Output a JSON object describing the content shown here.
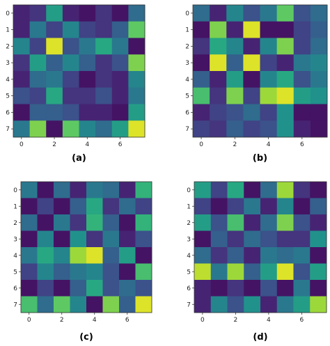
{
  "colormap": [
    "#440154",
    "#472d7b",
    "#3b528b",
    "#2c728e",
    "#21918c",
    "#28ae80",
    "#5ec962",
    "#addc30",
    "#fde725"
  ],
  "chart_data": [
    {
      "type": "heatmap",
      "caption": "(a)",
      "x_ticks": [
        "0",
        "2",
        "4",
        "6"
      ],
      "y_ticks": [
        "0",
        "1",
        "2",
        "3",
        "4",
        "5",
        "6",
        "7"
      ],
      "xlim": [
        -0.5,
        7.5
      ],
      "ylim": [
        7.5,
        -0.5
      ],
      "grid": false,
      "values": [
        [
          0.1,
          0.15,
          0.55,
          0.1,
          0.05,
          0.15,
          0.05,
          0.35
        ],
        [
          0.1,
          0.4,
          0.2,
          0.45,
          0.2,
          0.15,
          0.3,
          0.75
        ],
        [
          0.45,
          0.2,
          0.95,
          0.25,
          0.4,
          0.6,
          0.4,
          0.05
        ],
        [
          0.15,
          0.55,
          0.3,
          0.45,
          0.3,
          0.15,
          0.25,
          0.8
        ],
        [
          0.1,
          0.35,
          0.4,
          0.2,
          0.05,
          0.15,
          0.1,
          0.45
        ],
        [
          0.25,
          0.2,
          0.6,
          0.15,
          0.15,
          0.25,
          0.1,
          0.4
        ],
        [
          0.05,
          0.3,
          0.3,
          0.25,
          0.1,
          0.1,
          0.05,
          0.55
        ],
        [
          0.4,
          0.8,
          0.05,
          0.75,
          0.45,
          0.35,
          0.55,
          0.95
        ]
      ]
    },
    {
      "type": "heatmap",
      "caption": "(b)",
      "x_ticks": [
        "0",
        "2",
        "4",
        "6"
      ],
      "y_ticks": [
        "0",
        "1",
        "2",
        "3",
        "4",
        "5",
        "6",
        "7"
      ],
      "xlim": [
        -0.5,
        7.5
      ],
      "ylim": [
        7.5,
        -0.5
      ],
      "grid": false,
      "values": [
        [
          0.35,
          0.1,
          0.45,
          0.25,
          0.4,
          0.75,
          0.25,
          0.35
        ],
        [
          0.05,
          0.8,
          0.1,
          0.95,
          0.05,
          0.05,
          0.2,
          0.3
        ],
        [
          0.15,
          0.6,
          0.45,
          0.1,
          0.45,
          0.8,
          0.2,
          0.35
        ],
        [
          0.05,
          0.95,
          0.3,
          0.95,
          0.2,
          0.1,
          0.4,
          0.45
        ],
        [
          0.3,
          0.1,
          0.55,
          0.05,
          0.45,
          0.6,
          0.25,
          0.4
        ],
        [
          0.7,
          0.15,
          0.8,
          0.2,
          0.85,
          0.95,
          0.55,
          0.5
        ],
        [
          0.1,
          0.2,
          0.25,
          0.35,
          0.2,
          0.5,
          0.05,
          0.05
        ],
        [
          0.2,
          0.15,
          0.3,
          0.2,
          0.25,
          0.5,
          0.1,
          0.05
        ]
      ]
    },
    {
      "type": "heatmap",
      "caption": "(c)",
      "x_ticks": [
        "0",
        "2",
        "4",
        "6"
      ],
      "y_ticks": [
        "0",
        "1",
        "2",
        "3",
        "4",
        "5",
        "6",
        "7"
      ],
      "xlim": [
        -0.5,
        7.5
      ],
      "ylim": [
        7.5,
        -0.5
      ],
      "grid": false,
      "values": [
        [
          0.4,
          0.05,
          0.35,
          0.1,
          0.4,
          0.35,
          0.1,
          0.65
        ],
        [
          0.05,
          0.2,
          0.05,
          0.3,
          0.6,
          0.15,
          0.35,
          0.2
        ],
        [
          0.35,
          0.05,
          0.4,
          0.15,
          0.65,
          0.3,
          0.05,
          0.65
        ],
        [
          0.05,
          0.45,
          0.05,
          0.5,
          0.15,
          0.4,
          0.1,
          0.25
        ],
        [
          0.4,
          0.6,
          0.45,
          0.85,
          0.95,
          0.3,
          0.55,
          0.05
        ],
        [
          0.2,
          0.45,
          0.3,
          0.4,
          0.45,
          0.25,
          0.05,
          0.7
        ],
        [
          0.05,
          0.2,
          0.05,
          0.3,
          0.6,
          0.25,
          0.35,
          0.25
        ],
        [
          0.7,
          0.35,
          0.75,
          0.45,
          0.05,
          0.8,
          0.3,
          0.95
        ]
      ]
    },
    {
      "type": "heatmap",
      "caption": "(d)",
      "x_ticks": [
        "0",
        "2",
        "4",
        "6"
      ],
      "y_ticks": [
        "0",
        "1",
        "2",
        "3",
        "4",
        "5",
        "6",
        "7"
      ],
      "xlim": [
        -0.5,
        7.5
      ],
      "ylim": [
        7.5,
        -0.5
      ],
      "grid": false,
      "values": [
        [
          0.55,
          0.2,
          0.6,
          0.05,
          0.35,
          0.85,
          0.15,
          0.05
        ],
        [
          0.2,
          0.05,
          0.2,
          0.4,
          0.1,
          0.45,
          0.05,
          0.3
        ],
        [
          0.55,
          0.25,
          0.7,
          0.1,
          0.35,
          0.8,
          0.25,
          0.1
        ],
        [
          0.05,
          0.3,
          0.15,
          0.35,
          0.25,
          0.15,
          0.15,
          0.5
        ],
        [
          0.35,
          0.15,
          0.3,
          0.1,
          0.4,
          0.35,
          0.4,
          0.05
        ],
        [
          0.9,
          0.4,
          0.85,
          0.3,
          0.55,
          0.95,
          0.25,
          0.55
        ],
        [
          0.1,
          0.05,
          0.15,
          0.05,
          0.25,
          0.05,
          0.4,
          0.05
        ],
        [
          0.1,
          0.45,
          0.25,
          0.5,
          0.1,
          0.4,
          0.55,
          0.85
        ]
      ]
    }
  ]
}
